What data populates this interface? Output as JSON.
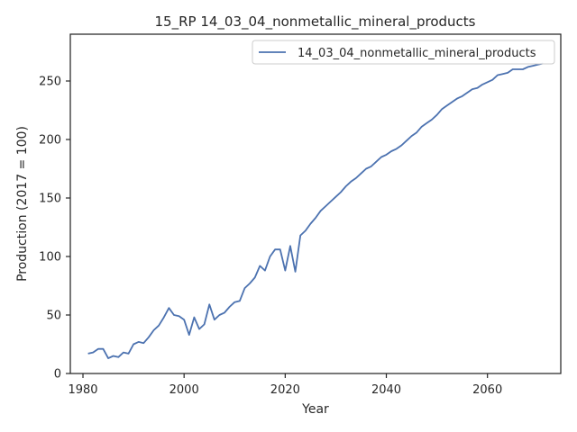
{
  "chart_data": {
    "type": "line",
    "title": "15_RP 14_03_04_nonmetallic_mineral_products",
    "xlabel": "Year",
    "ylabel": "Production (2017 = 100)",
    "xlim": [
      1977.5,
      2074.5
    ],
    "ylim": [
      0,
      290
    ],
    "x_ticks": [
      1980,
      2000,
      2020,
      2040,
      2060
    ],
    "x_tick_labels": [
      "1980",
      "2000",
      "2020",
      "2040",
      "2060"
    ],
    "y_ticks": [
      0,
      50,
      100,
      150,
      200,
      250
    ],
    "y_tick_labels": [
      "0",
      "50",
      "100",
      "150",
      "200",
      "250"
    ],
    "legend_position": "top-right",
    "grid": false,
    "series": [
      {
        "name": "14_03_04_nonmetallic_mineral_products",
        "color": "#4c72b0",
        "x": [
          1981,
          1982,
          1983,
          1984,
          1985,
          1986,
          1987,
          1988,
          1989,
          1990,
          1991,
          1992,
          1993,
          1994,
          1995,
          1996,
          1997,
          1998,
          1999,
          2000,
          2001,
          2002,
          2003,
          2004,
          2005,
          2006,
          2007,
          2008,
          2009,
          2010,
          2011,
          2012,
          2013,
          2014,
          2015,
          2016,
          2017,
          2018,
          2019,
          2020,
          2021,
          2022,
          2023,
          2024,
          2025,
          2026,
          2027,
          2028,
          2029,
          2030,
          2031,
          2032,
          2033,
          2034,
          2035,
          2036,
          2037,
          2038,
          2039,
          2040,
          2041,
          2042,
          2043,
          2044,
          2045,
          2046,
          2047,
          2048,
          2049,
          2050,
          2051,
          2052,
          2053,
          2054,
          2055,
          2056,
          2057,
          2058,
          2059,
          2060,
          2061,
          2062,
          2063,
          2064,
          2065,
          2066,
          2067,
          2068,
          2069,
          2070,
          2071
        ],
        "y": [
          17,
          18,
          21,
          21,
          13,
          15,
          14,
          18,
          17,
          25,
          27,
          26,
          31,
          37,
          41,
          48,
          56,
          50,
          49,
          46,
          33,
          48,
          38,
          42,
          59,
          46,
          50,
          52,
          57,
          61,
          62,
          73,
          77,
          82,
          92,
          88,
          100,
          106,
          106,
          88,
          109,
          87,
          118,
          122,
          128,
          133,
          139,
          143,
          147,
          151,
          155,
          160,
          164,
          167,
          171,
          175,
          177,
          181,
          185,
          187,
          190,
          192,
          195,
          199,
          203,
          206,
          211,
          214,
          217,
          221,
          226,
          229,
          232,
          235,
          237,
          240,
          243,
          244,
          247,
          249,
          251,
          255,
          256,
          257,
          260,
          260,
          260,
          262,
          263,
          264,
          265
        ]
      }
    ]
  }
}
